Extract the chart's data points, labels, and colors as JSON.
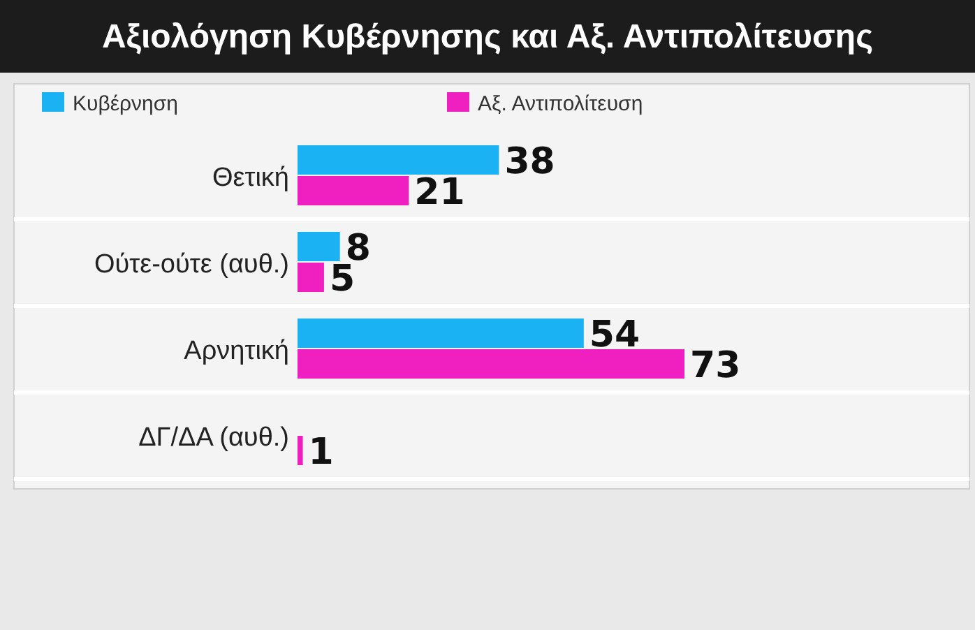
{
  "chart_data": {
    "type": "bar",
    "orientation": "horizontal",
    "title": "Αξιολόγηση Κυβέρνησης και Αξ. Αντιπολίτευσης",
    "categories": [
      "Θετική",
      "Ούτε-ούτε (αυθ.)",
      "Αρνητική",
      "ΔΓ/ΔΑ (αυθ.)"
    ],
    "series": [
      {
        "name": "Κυβέρνηση",
        "color": "#1ab2f2",
        "values": [
          38,
          8,
          54,
          0
        ],
        "value_labels": [
          "38",
          "8",
          "54",
          null
        ]
      },
      {
        "name": "Αξ. Αντιπολίτευση",
        "color": "#f01fbf",
        "values": [
          21,
          5,
          73,
          1
        ],
        "value_labels": [
          "21",
          "5",
          "73",
          "1"
        ]
      }
    ],
    "legend": "top"
  }
}
